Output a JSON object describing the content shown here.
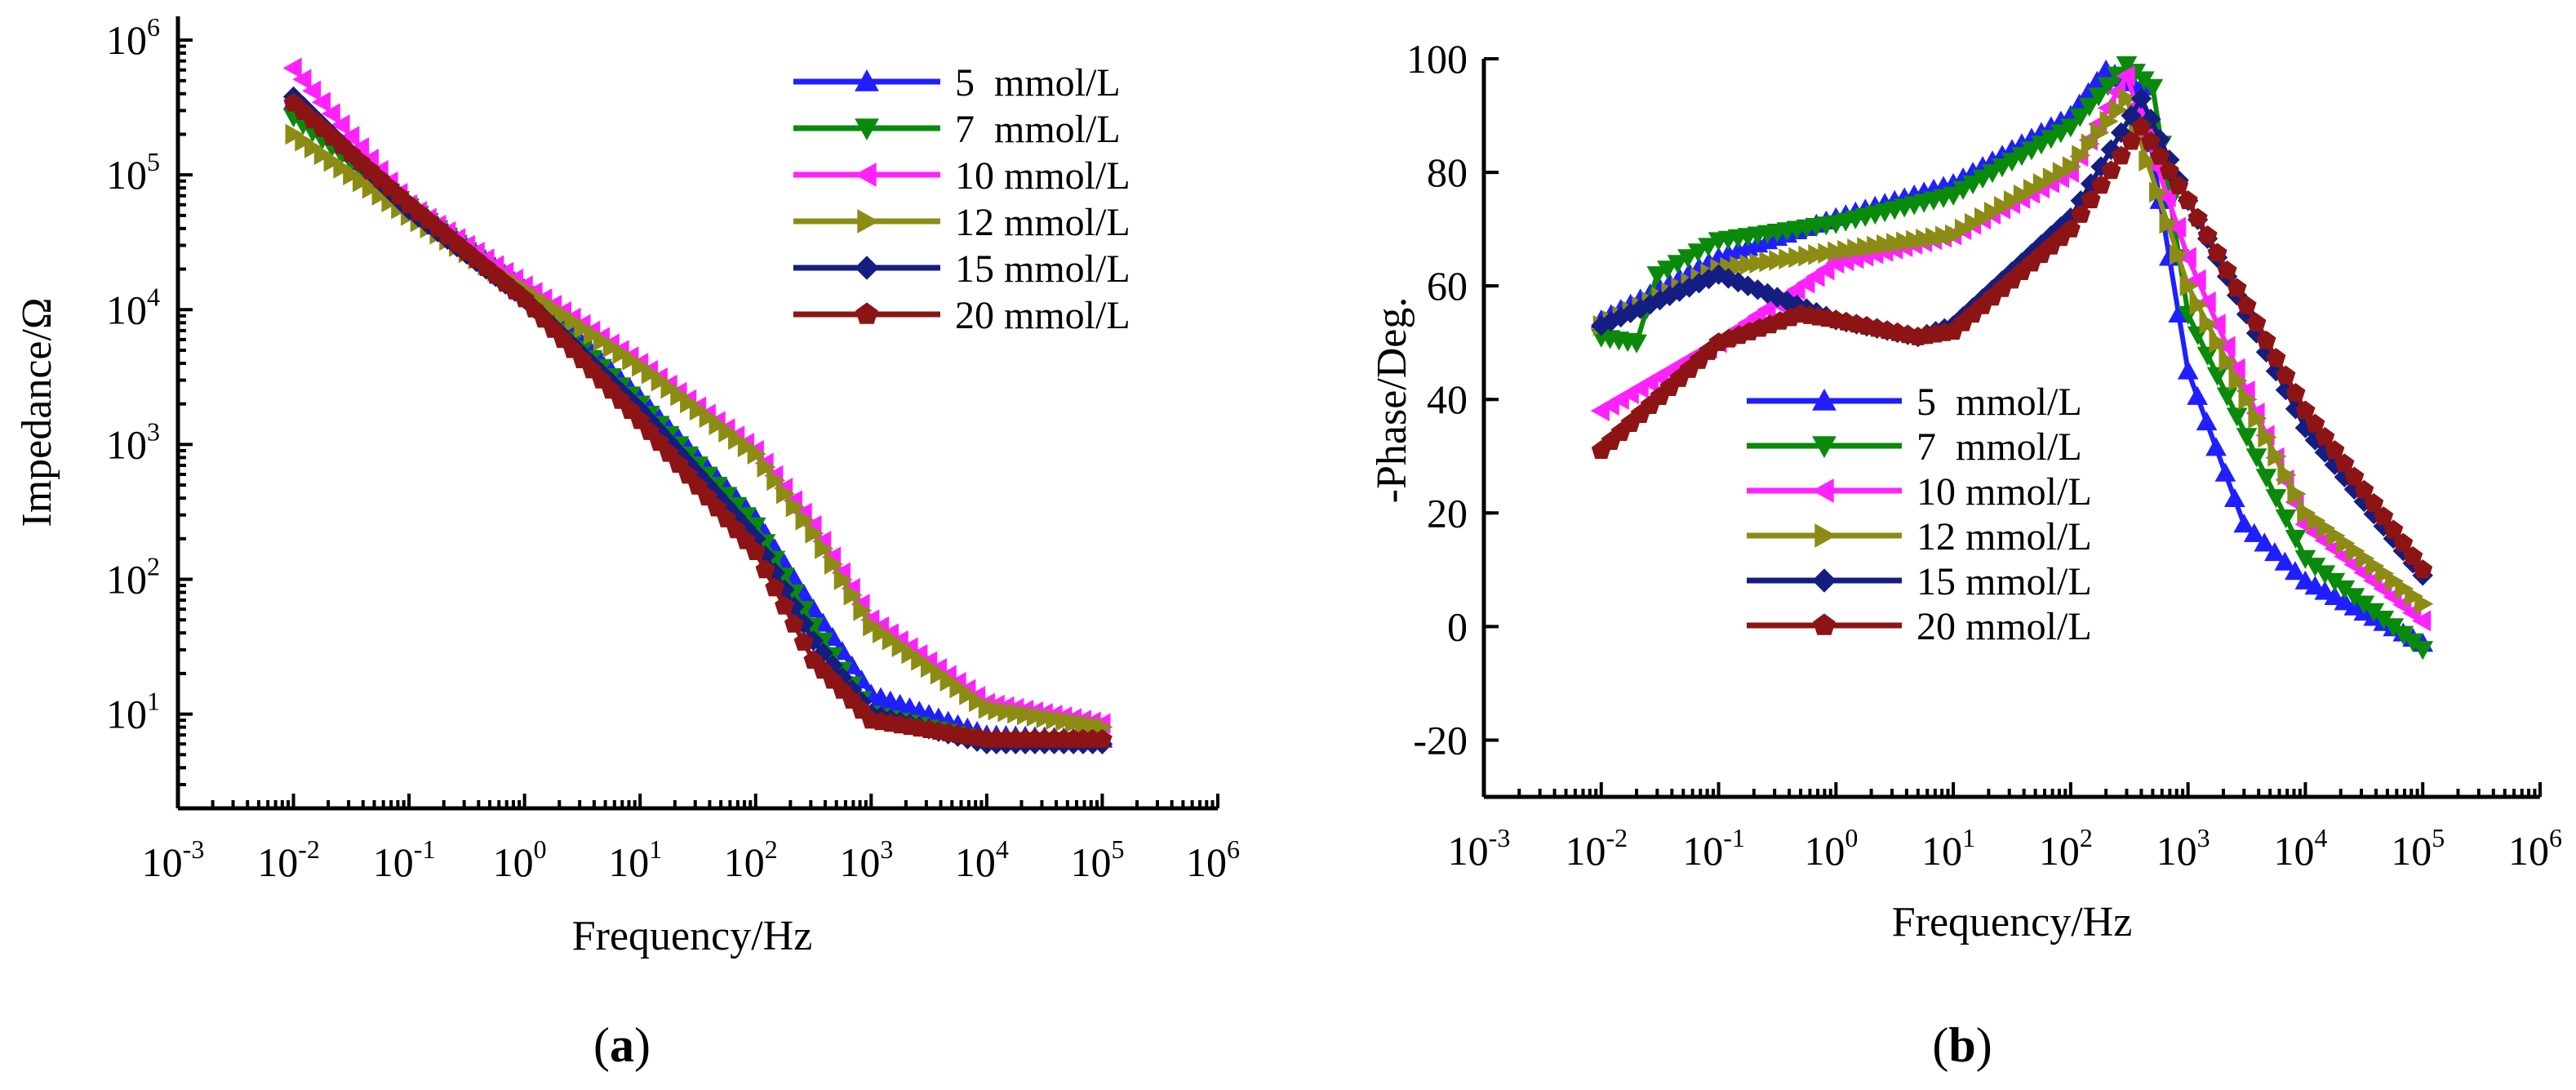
{
  "chart_data": [
    {
      "type": "line",
      "panel_label": "a",
      "xlabel": "Frequency/Hz",
      "ylabel": "Impedance/Ω",
      "xscale": "log",
      "yscale": "log",
      "xlim": [
        0.001,
        1000000
      ],
      "ylim": [
        2,
        1500000
      ],
      "x_ticks": [
        "-3",
        "-2",
        "-1",
        "0",
        "1",
        "2",
        "3",
        "4",
        "5",
        "6"
      ],
      "y_ticks": [
        "1",
        "2",
        "3",
        "4",
        "5",
        "6"
      ],
      "legend_position": "top-right",
      "series": [
        {
          "name": "5  mmol/L",
          "color": "#1f1fff",
          "marker": "triangle-up",
          "x": [
            0.01,
            0.1,
            1,
            10,
            100,
            316,
            1000,
            10000,
            100000
          ],
          "y": [
            350000,
            60000,
            14000,
            2200,
            280,
            60,
            14,
            7,
            6.5
          ]
        },
        {
          "name": "7  mmol/L",
          "color": "#0a8a0a",
          "marker": "triangle-down",
          "x": [
            0.01,
            0.1,
            1,
            10,
            100,
            316,
            1000,
            10000,
            100000
          ],
          "y": [
            270000,
            58000,
            13000,
            2000,
            250,
            45,
            10,
            6.3,
            6
          ]
        },
        {
          "name": "10 mmol/L",
          "color": "#ff22ff",
          "marker": "triangle-left",
          "x": [
            0.01,
            0.1,
            1,
            10,
            100,
            316,
            1000,
            10000,
            100000
          ],
          "y": [
            620000,
            60000,
            15000,
            4000,
            900,
            250,
            50,
            12,
            8.5
          ]
        },
        {
          "name": "12 mmol/L",
          "color": "#8c8c14",
          "marker": "triangle-right",
          "x": [
            0.01,
            0.1,
            1,
            10,
            100,
            316,
            1000,
            10000,
            100000
          ],
          "y": [
            200000,
            50000,
            14000,
            3800,
            850,
            220,
            45,
            11,
            8
          ]
        },
        {
          "name": "15 mmol/L",
          "color": "#141e82",
          "marker": "diamond",
          "x": [
            0.01,
            0.1,
            1,
            10,
            100,
            316,
            1000,
            10000,
            100000
          ],
          "y": [
            380000,
            55000,
            12000,
            1800,
            200,
            35,
            10,
            6,
            6
          ]
        },
        {
          "name": "20 mmol/L",
          "color": "#8c1414",
          "marker": "pentagon",
          "x": [
            0.01,
            0.1,
            1,
            10,
            100,
            316,
            1000,
            10000,
            100000
          ],
          "y": [
            340000,
            60000,
            12000,
            1500,
            160,
            25,
            9,
            6.5,
            6.5
          ]
        }
      ]
    },
    {
      "type": "line",
      "panel_label": "b",
      "xlabel": "Frequency/Hz",
      "ylabel": "-Phase/Deg.",
      "xscale": "log",
      "yscale": "linear",
      "xlim": [
        0.001,
        1000000
      ],
      "ylim": [
        -30,
        100
      ],
      "x_ticks": [
        "-3",
        "-2",
        "-1",
        "0",
        "1",
        "2",
        "3",
        "4",
        "5",
        "6"
      ],
      "y_ticks": [
        "-20",
        "0",
        "20",
        "40",
        "60",
        "80",
        "100"
      ],
      "legend_position": "lower-left",
      "series": [
        {
          "name": "5  mmol/L",
          "color": "#1f1fff",
          "marker": "triangle-up",
          "x": [
            0.01,
            0.1,
            1,
            10,
            100,
            200,
            400,
            1000,
            3000,
            10000,
            100000
          ],
          "y": [
            54,
            65,
            72,
            78,
            90,
            98,
            95,
            45,
            18,
            8,
            -3
          ]
        },
        {
          "name": "7  mmol/L",
          "color": "#0a8a0a",
          "marker": "triangle-down",
          "x": [
            0.01,
            0.02,
            0.03,
            0.1,
            1,
            10,
            100,
            300,
            500,
            1000,
            10000,
            100000
          ],
          "y": [
            51,
            50,
            62,
            68,
            71,
            76,
            88,
            99,
            95,
            55,
            12,
            -4
          ]
        },
        {
          "name": "10 mmol/L",
          "color": "#ff22ff",
          "marker": "triangle-left",
          "x": [
            0.01,
            0.1,
            1,
            10,
            100,
            300,
            1000,
            10000,
            100000
          ],
          "y": [
            38,
            50,
            64,
            69,
            80,
            97,
            65,
            18,
            1
          ]
        },
        {
          "name": "12 mmol/L",
          "color": "#8c8c14",
          "marker": "triangle-right",
          "x": [
            0.01,
            0.1,
            1,
            10,
            100,
            300,
            1000,
            10000,
            100000
          ],
          "y": [
            53,
            63,
            66,
            69,
            81,
            93,
            60,
            20,
            4
          ]
        },
        {
          "name": "15 mmol/L",
          "color": "#141e82",
          "marker": "diamond",
          "x": [
            0.01,
            0.1,
            1,
            5,
            10,
            100,
            400,
            1000,
            10000,
            100000
          ],
          "y": [
            53,
            62,
            54,
            51,
            53,
            72,
            93,
            75,
            35,
            9
          ]
        },
        {
          "name": "20 mmol/L",
          "color": "#8c1414",
          "marker": "pentagon",
          "x": [
            0.01,
            0.1,
            0.5,
            1,
            5,
            10,
            100,
            400,
            1000,
            10000,
            100000
          ],
          "y": [
            31,
            50,
            55,
            54,
            51,
            52,
            70,
            88,
            75,
            38,
            10
          ]
        }
      ]
    }
  ],
  "labels": {
    "panel_a_letter": "a",
    "panel_b_letter": "b",
    "open_paren": "(",
    "close_paren": ")",
    "x_tick_base": "10"
  }
}
